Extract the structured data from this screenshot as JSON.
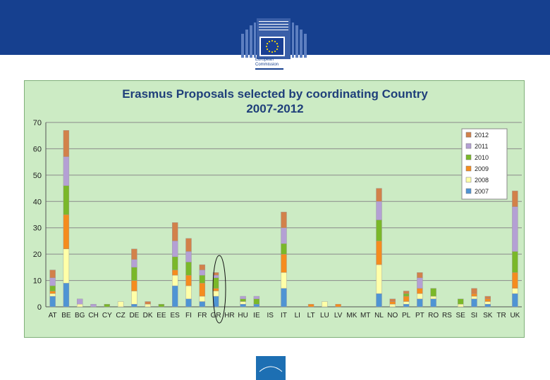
{
  "header": {
    "org_line1": "European",
    "org_line2": "Commission"
  },
  "chart_data": {
    "type": "bar",
    "stacked": true,
    "title": "Erasmus Proposals selected by coordinating Country",
    "subtitle": "2007-2012",
    "xlabel": "",
    "ylabel": "",
    "ylim": [
      0,
      70
    ],
    "yticks": [
      0,
      10,
      20,
      30,
      40,
      50,
      60,
      70
    ],
    "grid": true,
    "legend_position": "top-right",
    "categories": [
      "AT",
      "BE",
      "BG",
      "CH",
      "CY",
      "CZ",
      "DE",
      "DK",
      "EE",
      "ES",
      "FI",
      "FR",
      "GR",
      "HR",
      "HU",
      "IE",
      "IS",
      "IT",
      "LI",
      "LT",
      "LU",
      "LV",
      "MK",
      "MT",
      "NL",
      "NO",
      "PL",
      "PT",
      "RO",
      "RS",
      "SE",
      "SI",
      "SK",
      "TR",
      "UK"
    ],
    "series": [
      {
        "name": "2007",
        "color": "#4f94d4",
        "values": [
          4,
          9,
          0,
          0,
          0,
          0,
          1,
          0,
          0,
          8,
          3,
          2,
          4,
          0,
          1,
          1,
          0,
          7,
          0,
          0,
          0,
          0,
          0,
          0,
          5,
          0,
          1,
          3,
          3,
          0,
          0,
          3,
          1,
          0,
          5
        ]
      },
      {
        "name": "2008",
        "color": "#ffffa8",
        "values": [
          1,
          13,
          1,
          0,
          0,
          2,
          5,
          1,
          0,
          4,
          5,
          2,
          2,
          0,
          1,
          0,
          0,
          6,
          0,
          0,
          2,
          0,
          0,
          0,
          11,
          1,
          1,
          2,
          1,
          0,
          1,
          1,
          1,
          0,
          2
        ]
      },
      {
        "name": "2009",
        "color": "#f58c1e",
        "values": [
          1,
          13,
          0,
          0,
          0,
          0,
          4,
          0,
          0,
          2,
          4,
          5,
          1,
          0,
          0,
          0,
          0,
          7,
          0,
          1,
          0,
          1,
          0,
          0,
          9,
          1,
          2,
          2,
          0,
          0,
          0,
          1,
          1,
          0,
          6
        ]
      },
      {
        "name": "2010",
        "color": "#7ab829",
        "values": [
          2,
          11,
          0,
          0,
          1,
          0,
          5,
          0,
          1,
          5,
          5,
          3,
          4,
          0,
          1,
          2,
          0,
          4,
          0,
          0,
          0,
          0,
          0,
          0,
          8,
          0,
          1,
          0,
          3,
          0,
          2,
          0,
          0,
          0,
          8
        ]
      },
      {
        "name": "2011",
        "color": "#b4a0d4",
        "values": [
          3,
          11,
          2,
          1,
          0,
          0,
          3,
          0,
          0,
          6,
          4,
          2,
          1,
          0,
          1,
          1,
          0,
          6,
          0,
          0,
          0,
          0,
          0,
          0,
          7,
          0,
          0,
          4,
          0,
          0,
          0,
          0,
          0,
          0,
          17
        ]
      },
      {
        "name": "2012",
        "color": "#d2814a",
        "values": [
          3,
          10,
          0,
          0,
          0,
          0,
          4,
          1,
          0,
          7,
          5,
          2,
          1,
          0,
          0,
          0,
          0,
          6,
          0,
          0,
          0,
          0,
          0,
          0,
          5,
          1,
          1,
          2,
          0,
          0,
          0,
          2,
          1,
          0,
          6
        ]
      }
    ]
  }
}
